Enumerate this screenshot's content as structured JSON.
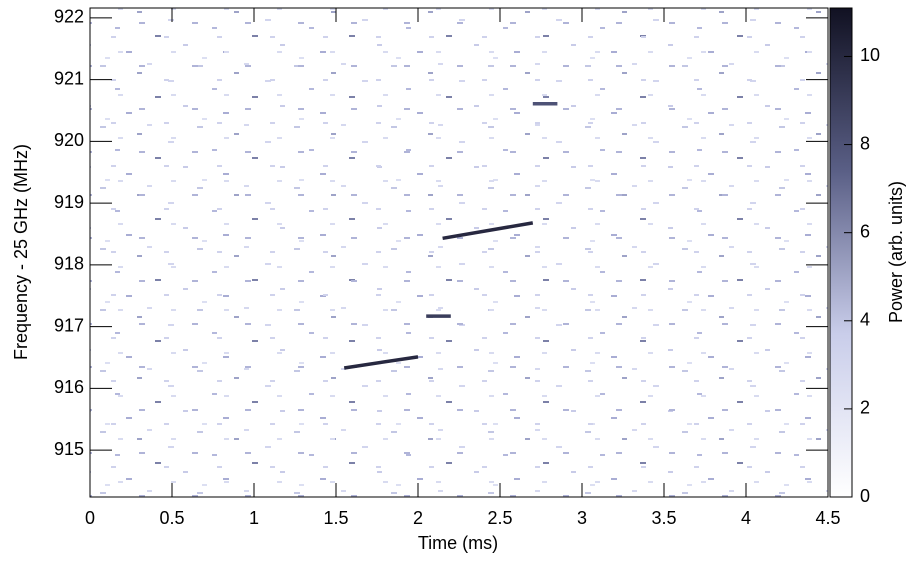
{
  "chart_data": {
    "type": "spectrogram",
    "xlabel": "Time (ms)",
    "ylabel": "Frequency - 25 GHz (MHz)",
    "colorbar_label": "Power (arb. units)",
    "xlim": [
      0,
      4.5
    ],
    "xticks": [
      0,
      0.5,
      1,
      1.5,
      2,
      2.5,
      3,
      3.5,
      4,
      4.5
    ],
    "ylim": [
      914.24,
      922.16
    ],
    "yticks": [
      915,
      916,
      917,
      918,
      919,
      920,
      921,
      922
    ],
    "clim": [
      0,
      11.1
    ],
    "cticks": [
      0,
      2,
      4,
      6,
      8,
      10
    ],
    "colormap": [
      "#ffffff",
      "#c9cdea",
      "#5a5f86",
      "#111122"
    ],
    "segments": [
      {
        "x": [
          1.55,
          2.0
        ],
        "y": [
          916.33,
          916.51
        ],
        "value": 10
      },
      {
        "x": [
          2.05,
          2.2
        ],
        "y": [
          917.17,
          917.17
        ],
        "value": 9
      },
      {
        "x": [
          2.15,
          2.7
        ],
        "y": [
          918.43,
          918.68
        ],
        "value": 10
      },
      {
        "x": [
          2.7,
          2.85
        ],
        "y": [
          920.61,
          920.61
        ],
        "value": 8
      }
    ]
  }
}
